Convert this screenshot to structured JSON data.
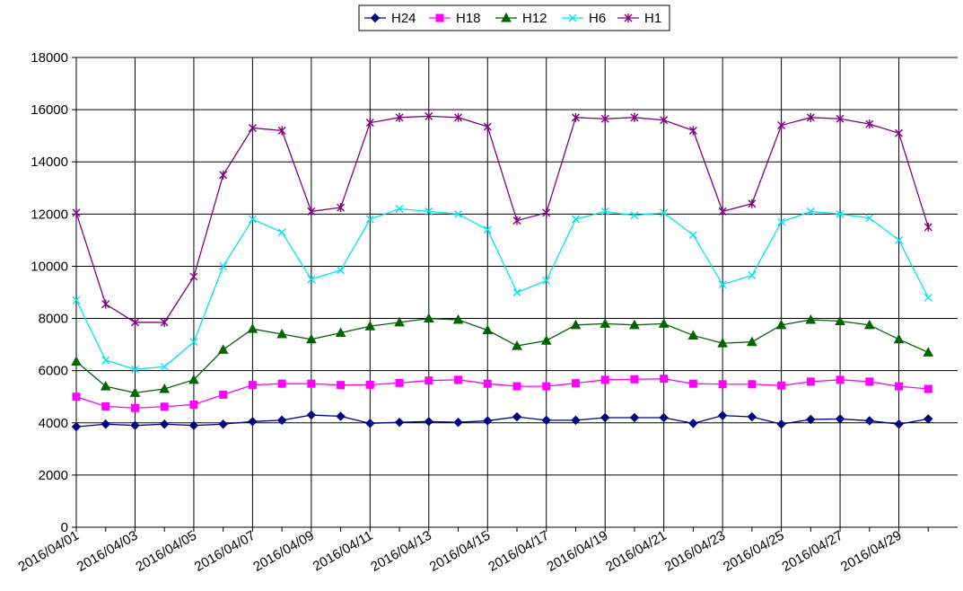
{
  "chart_data": {
    "type": "line",
    "categories": [
      "2016/04/01",
      "2016/04/02",
      "2016/04/03",
      "2016/04/04",
      "2016/04/05",
      "2016/04/06",
      "2016/04/07",
      "2016/04/08",
      "2016/04/09",
      "2016/04/10",
      "2016/04/11",
      "2016/04/12",
      "2016/04/13",
      "2016/04/14",
      "2016/04/15",
      "2016/04/16",
      "2016/04/17",
      "2016/04/18",
      "2016/04/19",
      "2016/04/20",
      "2016/04/21",
      "2016/04/22",
      "2016/04/23",
      "2016/04/24",
      "2016/04/25",
      "2016/04/26",
      "2016/04/27",
      "2016/04/28",
      "2016/04/29",
      "2016/04/30"
    ],
    "tick_labels": [
      "2016/04/01",
      "2016/04/03",
      "2016/04/05",
      "2016/04/07",
      "2016/04/09",
      "2016/04/11",
      "2016/04/13",
      "2016/04/15",
      "2016/04/17",
      "2016/04/19",
      "2016/04/21",
      "2016/04/23",
      "2016/04/25",
      "2016/04/27",
      "2016/04/29"
    ],
    "y_ticks": [
      "0",
      "2000",
      "4000",
      "6000",
      "8000",
      "10000",
      "12000",
      "14000",
      "16000",
      "18000"
    ],
    "ylim": [
      0,
      18000
    ],
    "grid": true,
    "legend_position": "top-center",
    "series": [
      {
        "name": "H24",
        "color": "#000080",
        "marker": "diamond",
        "values": [
          3850,
          3950,
          3900,
          3950,
          3900,
          3950,
          4050,
          4100,
          4300,
          4250,
          3980,
          4020,
          4050,
          4020,
          4080,
          4230,
          4100,
          4100,
          4200,
          4200,
          4200,
          3980,
          4280,
          4230,
          3950,
          4130,
          4150,
          4080,
          3950,
          4150
        ]
      },
      {
        "name": "H18",
        "color": "#ff00ff",
        "marker": "square",
        "values": [
          5000,
          4630,
          4570,
          4620,
          4700,
          5080,
          5450,
          5500,
          5500,
          5450,
          5460,
          5530,
          5620,
          5650,
          5500,
          5400,
          5400,
          5520,
          5650,
          5670,
          5690,
          5500,
          5480,
          5480,
          5430,
          5580,
          5650,
          5580,
          5400,
          5300
        ]
      },
      {
        "name": "H12",
        "color": "#006400",
        "marker": "triangle",
        "values": [
          6350,
          5400,
          5150,
          5300,
          5650,
          6800,
          7600,
          7400,
          7200,
          7450,
          7700,
          7850,
          8000,
          7950,
          7550,
          6950,
          7150,
          7750,
          7800,
          7750,
          7800,
          7350,
          7050,
          7100,
          7750,
          7950,
          7900,
          7750,
          7200,
          6700
        ]
      },
      {
        "name": "H6",
        "color": "#00e5ee",
        "marker": "x",
        "values": [
          8700,
          6400,
          6050,
          6150,
          7100,
          10000,
          11800,
          11300,
          9500,
          9850,
          11800,
          12200,
          12100,
          12000,
          11400,
          9000,
          9450,
          11800,
          12100,
          11950,
          12050,
          11200,
          9300,
          9650,
          11700,
          12100,
          12000,
          11850,
          11000,
          8800
        ]
      },
      {
        "name": "H1",
        "color": "#800080",
        "marker": "star",
        "values": [
          12050,
          8550,
          7850,
          7850,
          9600,
          13500,
          15300,
          15200,
          12100,
          12250,
          15500,
          15700,
          15750,
          15700,
          15350,
          11750,
          12050,
          15700,
          15650,
          15700,
          15600,
          15200,
          12100,
          12400,
          15400,
          15700,
          15650,
          15450,
          15100,
          11500
        ]
      }
    ]
  }
}
